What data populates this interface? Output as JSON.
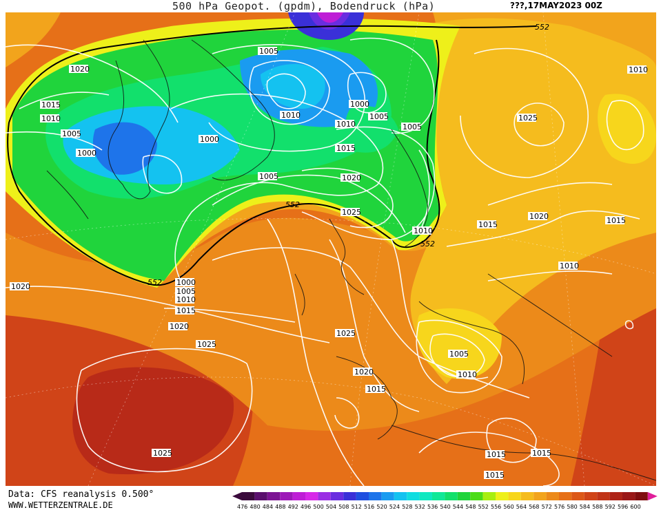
{
  "title": "500 hPa Geopot. (gpdm), Bodendruck (hPa)",
  "date": "???,17MAY2023 00Z",
  "footer": {
    "source": "Data: CFS reanalysis 0.500°",
    "site": "WWW.WETTERZENTRALE.DE"
  },
  "scale": {
    "values": [
      476,
      480,
      484,
      488,
      492,
      496,
      500,
      504,
      508,
      512,
      516,
      520,
      524,
      528,
      532,
      536,
      540,
      544,
      548,
      552,
      556,
      560,
      564,
      568,
      572,
      576,
      580,
      584,
      588,
      592,
      596,
      600
    ],
    "colors": [
      "#3a0a3c",
      "#5a0f6e",
      "#7c1494",
      "#9d19b8",
      "#be1ed6",
      "#d728e8",
      "#9b2ee4",
      "#6a2de0",
      "#3a30d8",
      "#1f4fe0",
      "#1e74ea",
      "#1a9bf0",
      "#14c2f0",
      "#10dde0",
      "#10e8c0",
      "#10e898",
      "#12e06c",
      "#20d43c",
      "#4cdc18",
      "#a8ee10",
      "#eef01a",
      "#f7d61c",
      "#f5bc1e",
      "#f2a41c",
      "#ec8a1a",
      "#e67018",
      "#dc5818",
      "#d04418",
      "#c03418",
      "#ae2418",
      "#9a1818",
      "#800e10"
    ]
  },
  "contour_labels": {
    "geopotential": [
      "552",
      "552",
      "552",
      "552"
    ],
    "pressure": [
      "1020",
      "1015",
      "1010",
      "1005",
      "1000",
      "1005",
      "1005",
      "1010",
      "1000",
      "1005",
      "1010",
      "1015",
      "1020",
      "1025",
      "1005",
      "1000",
      "1005",
      "1010",
      "1010",
      "1005",
      "1020",
      "1025",
      "1015",
      "1010",
      "1020",
      "1015",
      "1010",
      "1025",
      "1020",
      "1025",
      "1020",
      "1015",
      "1005",
      "1010",
      "1025",
      "1015",
      "1015",
      "1015",
      "1000",
      "1005",
      "1010",
      "1015",
      "1020"
    ]
  }
}
